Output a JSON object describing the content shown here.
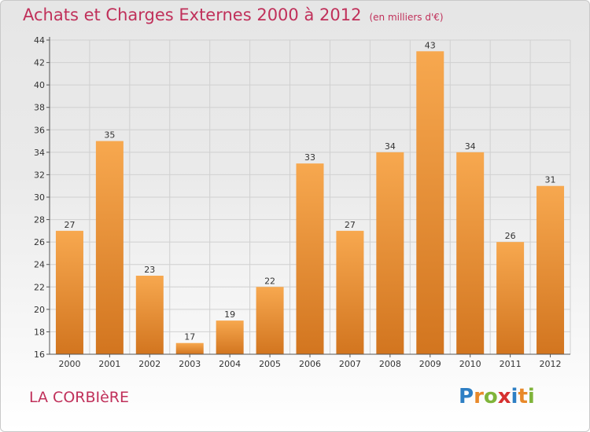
{
  "page": {
    "title": "Achats et Charges Externes 2000 à 2012",
    "unit": "(en milliers d'€)",
    "commune": "LA CORBIèRE",
    "logo": {
      "letters": [
        "P",
        "r",
        "o",
        "x",
        "i",
        "t",
        "i"
      ],
      "colors": [
        "#2e7fc4",
        "#e8892a",
        "#7fb43a",
        "#d6302f",
        "#2e7fc4",
        "#e8892a",
        "#7fb43a"
      ]
    }
  },
  "colors": {
    "title": "#c0305a",
    "bar_light": "#f7a84f",
    "bar_dark": "#d2751f"
  },
  "chart_data": {
    "type": "bar",
    "title": "Achats et Charges Externes 2000 à 2012",
    "xlabel": "",
    "ylabel": "",
    "categories": [
      "2000",
      "2001",
      "2002",
      "2003",
      "2004",
      "2005",
      "2006",
      "2007",
      "2008",
      "2009",
      "2010",
      "2011",
      "2012"
    ],
    "values": [
      27,
      35,
      23,
      17,
      19,
      22,
      33,
      27,
      34,
      43,
      34,
      26,
      31
    ],
    "ylim": [
      16,
      44
    ],
    "yticks": [
      16,
      18,
      20,
      22,
      24,
      26,
      28,
      30,
      32,
      34,
      36,
      38,
      40,
      42,
      44
    ],
    "grid": true,
    "legend": "none"
  }
}
